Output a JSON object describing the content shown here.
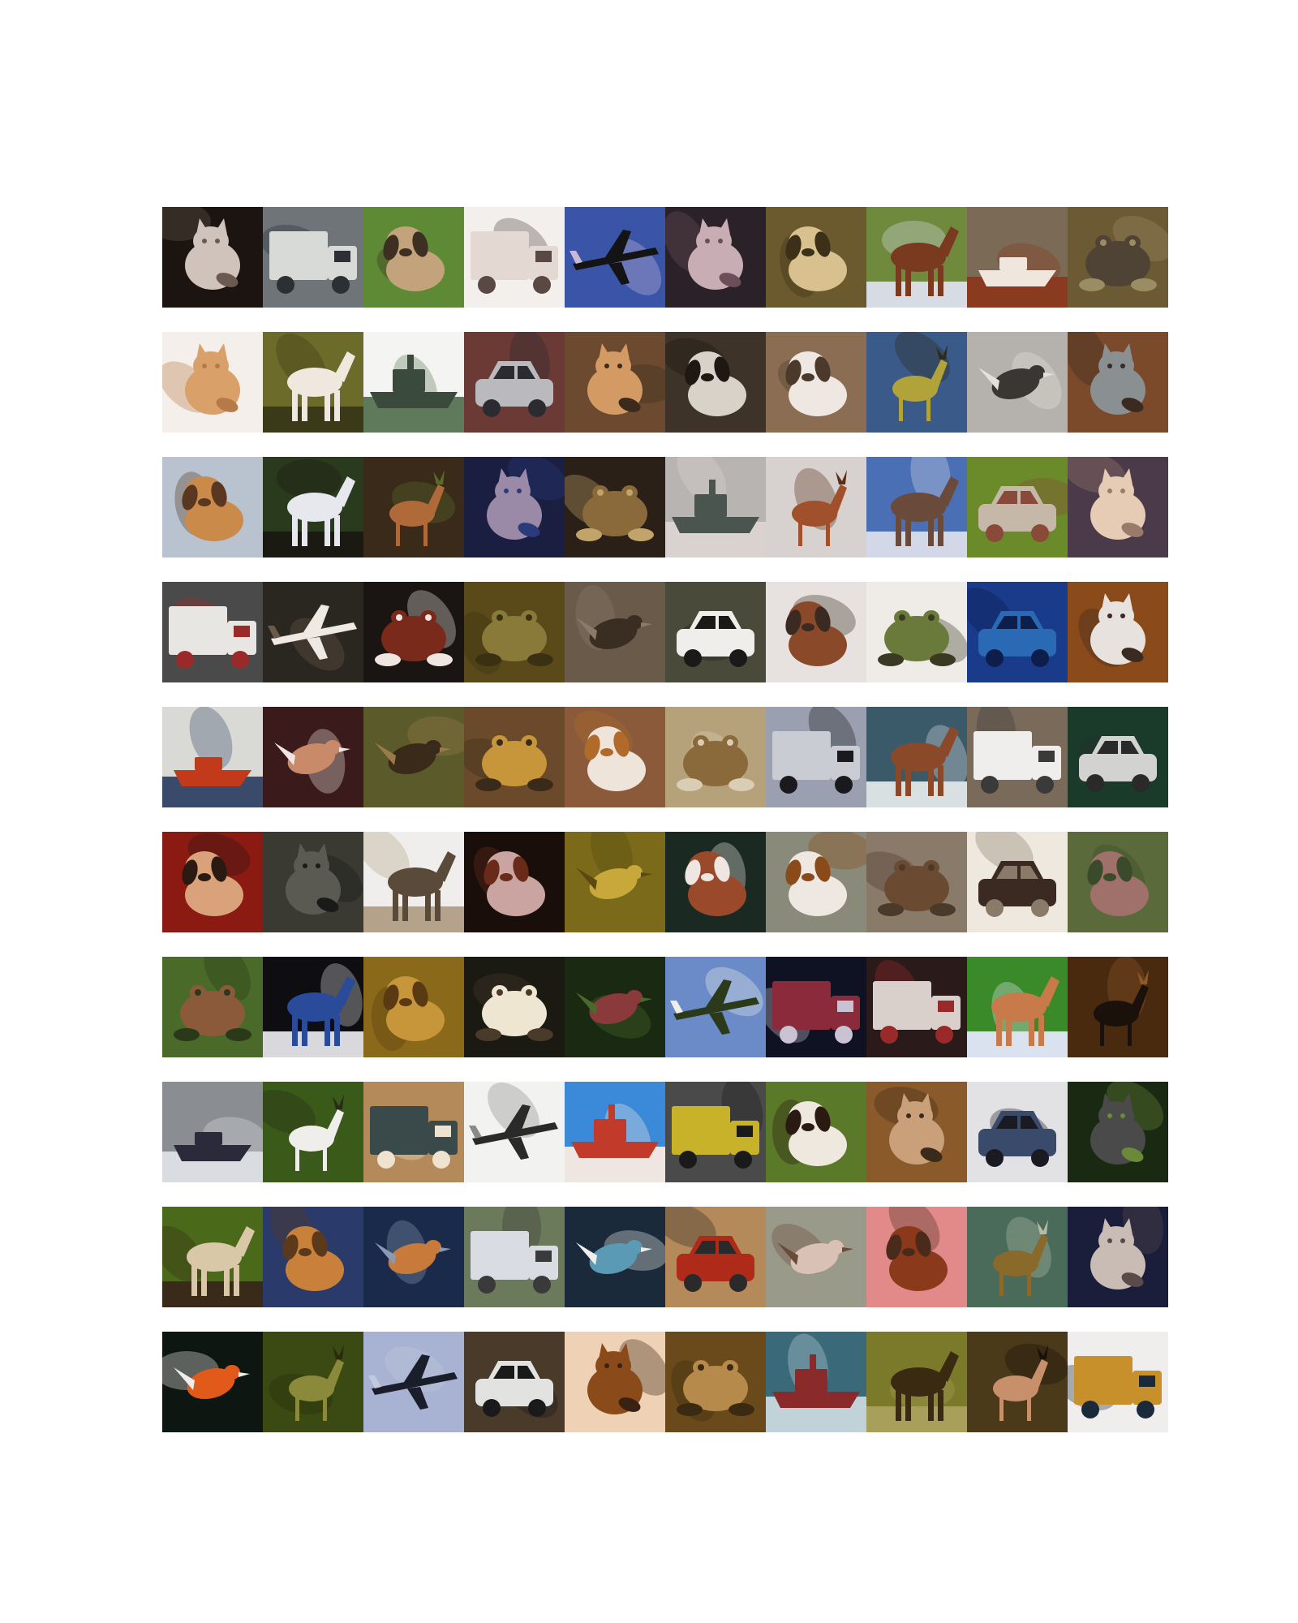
{
  "grid": {
    "rows": 10,
    "cols": 10,
    "tiles": [
      {
        "subject": "cat",
        "bg": "#1b1410",
        "fg": "#cfc3bb",
        "accent": "#6b5a50"
      },
      {
        "subject": "truck",
        "bg": "#6e7478",
        "fg": "#d7dad6",
        "accent": "#2c2f33"
      },
      {
        "subject": "dog",
        "bg": "#5f8a35",
        "fg": "#c2a37c",
        "accent": "#3d2f22"
      },
      {
        "subject": "truck",
        "bg": "#f2efed",
        "fg": "#e4d8d2",
        "accent": "#5a4844"
      },
      {
        "subject": "airplane",
        "bg": "#3a55a8",
        "fg": "#141414",
        "accent": "#c9b8d6"
      },
      {
        "subject": "cat",
        "bg": "#2a2228",
        "fg": "#c9adb5",
        "accent": "#6c4e58"
      },
      {
        "subject": "dog",
        "bg": "#6b5a2e",
        "fg": "#d8c08f",
        "accent": "#3c3018"
      },
      {
        "subject": "horse",
        "bg": "#6f8a3d",
        "fg": "#7a3a20",
        "accent": "#d7dbe4"
      },
      {
        "subject": "boat",
        "bg": "#7b6a55",
        "fg": "#efe7dd",
        "accent": "#8a3a1f"
      },
      {
        "subject": "frog",
        "bg": "#6c5a34",
        "fg": "#4e4334",
        "accent": "#9b8d63"
      },
      {
        "subject": "cat",
        "bg": "#f4efea",
        "fg": "#d9a06a",
        "accent": "#b57a48"
      },
      {
        "subject": "horse",
        "bg": "#6d6b2a",
        "fg": "#efe8de",
        "accent": "#3b3a18"
      },
      {
        "subject": "ship",
        "bg": "#f4f4f2",
        "fg": "#3a4a3c",
        "accent": "#5e7a5a"
      },
      {
        "subject": "car",
        "bg": "#6b3a35",
        "fg": "#b9b9be",
        "accent": "#2c2c30"
      },
      {
        "subject": "cat",
        "bg": "#6b4a30",
        "fg": "#d39a63",
        "accent": "#3c2a1d"
      },
      {
        "subject": "dog",
        "bg": "#3d3328",
        "fg": "#d9d2c8",
        "accent": "#1e1712"
      },
      {
        "subject": "dog",
        "bg": "#8a6d52",
        "fg": "#efe8e2",
        "accent": "#4b3a2c"
      },
      {
        "subject": "deer",
        "bg": "#3a5a8a",
        "fg": "#b2a23a",
        "accent": "#2d2b1a"
      },
      {
        "subject": "bird",
        "bg": "#b5b2ad",
        "fg": "#3a3633",
        "accent": "#e4e1dd"
      },
      {
        "subject": "cat",
        "bg": "#7a4a2a",
        "fg": "#8a8f92",
        "accent": "#3a2a22"
      },
      {
        "subject": "dog",
        "bg": "#b9c3cf",
        "fg": "#c98a4a",
        "accent": "#5a3720"
      },
      {
        "subject": "horse",
        "bg": "#2a3a1d",
        "fg": "#e7e7ee",
        "accent": "#1a1a12"
      },
      {
        "subject": "deer",
        "bg": "#3a2a1a",
        "fg": "#b06a3a",
        "accent": "#5b6a2a"
      },
      {
        "subject": "cat",
        "bg": "#1a1e40",
        "fg": "#9a8aa8",
        "accent": "#2a3a7a"
      },
      {
        "subject": "frog",
        "bg": "#2a2018",
        "fg": "#8a6a3a",
        "accent": "#c2a36a"
      },
      {
        "subject": "ship",
        "bg": "#b8b4b2",
        "fg": "#4a5550",
        "accent": "#d9d2cf"
      },
      {
        "subject": "deer",
        "bg": "#d7d2cf",
        "fg": "#a0502a",
        "accent": "#5a2e18"
      },
      {
        "subject": "horse",
        "bg": "#4a6fb5",
        "fg": "#6a4a3a",
        "accent": "#d2d8e8"
      },
      {
        "subject": "car",
        "bg": "#6b8a2a",
        "fg": "#c6b8a8",
        "accent": "#8a4a3a"
      },
      {
        "subject": "cat",
        "bg": "#4a3a4a",
        "fg": "#e7ccb5",
        "accent": "#9a7a6a"
      },
      {
        "subject": "truck",
        "bg": "#4a4a4a",
        "fg": "#e7e6e3",
        "accent": "#9a2a2a"
      },
      {
        "subject": "airplane",
        "bg": "#2a2620",
        "fg": "#efe9e4",
        "accent": "#6a5a4a"
      },
      {
        "subject": "frog",
        "bg": "#1a1412",
        "fg": "#7a2a1a",
        "accent": "#efe6e2"
      },
      {
        "subject": "frog",
        "bg": "#5a4a1a",
        "fg": "#8a7a3a",
        "accent": "#3a3012"
      },
      {
        "subject": "bird",
        "bg": "#6a5a4a",
        "fg": "#3a2e22",
        "accent": "#8a7a6a"
      },
      {
        "subject": "car",
        "bg": "#4a4a3a",
        "fg": "#efeeea",
        "accent": "#1a1a18"
      },
      {
        "subject": "dog",
        "bg": "#e7e2df",
        "fg": "#8a4a2a",
        "accent": "#3a2a22"
      },
      {
        "subject": "frog",
        "bg": "#efece8",
        "fg": "#6a7a3a",
        "accent": "#3a3a22"
      },
      {
        "subject": "car",
        "bg": "#1a3a8a",
        "fg": "#2a6ab5",
        "accent": "#0e1e4a"
      },
      {
        "subject": "cat",
        "bg": "#8a4a1a",
        "fg": "#e7e2de",
        "accent": "#3a2a22"
      },
      {
        "subject": "boat",
        "bg": "#d9dad6",
        "fg": "#c23a1a",
        "accent": "#3a4a6a"
      },
      {
        "subject": "bird",
        "bg": "#3a1a1a",
        "fg": "#c98a6a",
        "accent": "#efe6e2"
      },
      {
        "subject": "bird",
        "bg": "#5a5a2a",
        "fg": "#3a2a1a",
        "accent": "#9a7a4a"
      },
      {
        "subject": "frog",
        "bg": "#6a4a2a",
        "fg": "#c8963a",
        "accent": "#3a2a1a"
      },
      {
        "subject": "dog",
        "bg": "#8a5a3a",
        "fg": "#efe4da",
        "accent": "#b06a2a"
      },
      {
        "subject": "frog",
        "bg": "#b5a27a",
        "fg": "#8a6a3a",
        "accent": "#d9cdb5"
      },
      {
        "subject": "truck",
        "bg": "#9aa0b0",
        "fg": "#c9ccd2",
        "accent": "#1a1a1e"
      },
      {
        "subject": "horse",
        "bg": "#3a5a6a",
        "fg": "#8a4a2a",
        "accent": "#d9e0e2"
      },
      {
        "subject": "truck",
        "bg": "#7a6a5a",
        "fg": "#efeeec",
        "accent": "#3a3a3a"
      },
      {
        "subject": "car",
        "bg": "#1a3a2a",
        "fg": "#d2d2d0",
        "accent": "#2a2a2a"
      },
      {
        "subject": "dog",
        "bg": "#8a1a12",
        "fg": "#d9a27a",
        "accent": "#2a1a12"
      },
      {
        "subject": "cat",
        "bg": "#3a3a32",
        "fg": "#5a5a52",
        "accent": "#1a1a18"
      },
      {
        "subject": "horse",
        "bg": "#efeeec",
        "fg": "#5a4a3a",
        "accent": "#b5a28a"
      },
      {
        "subject": "dog",
        "bg": "#1a0e0a",
        "fg": "#c9a4a0",
        "accent": "#6a2a1a"
      },
      {
        "subject": "bird",
        "bg": "#7a6a1a",
        "fg": "#c8a83a",
        "accent": "#5a4a12"
      },
      {
        "subject": "dog",
        "bg": "#1a2a22",
        "fg": "#9a4a2a",
        "accent": "#efe6e2"
      },
      {
        "subject": "dog",
        "bg": "#8a8a7a",
        "fg": "#efe8e2",
        "accent": "#8a4a1a"
      },
      {
        "subject": "frog",
        "bg": "#8a7a6a",
        "fg": "#6a4a30",
        "accent": "#4a3a2a"
      },
      {
        "subject": "car",
        "bg": "#efe8df",
        "fg": "#3a2a22",
        "accent": "#8a7a6a"
      },
      {
        "subject": "dog",
        "bg": "#5a6a3a",
        "fg": "#a0706a",
        "accent": "#3a4a2a"
      },
      {
        "subject": "frog",
        "bg": "#4a6a2a",
        "fg": "#8a5a3a",
        "accent": "#2a3a18"
      },
      {
        "subject": "horse",
        "bg": "#0e0e12",
        "fg": "#2a4a9a",
        "accent": "#d9d9dd"
      },
      {
        "subject": "dog",
        "bg": "#8a6a1a",
        "fg": "#c8963a",
        "accent": "#5a3a12"
      },
      {
        "subject": "frog",
        "bg": "#1a1a12",
        "fg": "#efe6d2",
        "accent": "#4a3a2a"
      },
      {
        "subject": "bird",
        "bg": "#1a2a12",
        "fg": "#8a3a3a",
        "accent": "#4a6a2a"
      },
      {
        "subject": "airplane",
        "bg": "#6a8ac8",
        "fg": "#2a3a1a",
        "accent": "#efeeec"
      },
      {
        "subject": "truck",
        "bg": "#0e1222",
        "fg": "#8a2a3a",
        "accent": "#c8c2d2"
      },
      {
        "subject": "truck",
        "bg": "#2a1a1a",
        "fg": "#d9cfcb",
        "accent": "#9a2a2a"
      },
      {
        "subject": "horse",
        "bg": "#3a8a2a",
        "fg": "#c87a4a",
        "accent": "#d9e2ee"
      },
      {
        "subject": "deer",
        "bg": "#4a2a0e",
        "fg": "#1a120a",
        "accent": "#8a5a2a"
      },
      {
        "subject": "boat",
        "bg": "#8a8e92",
        "fg": "#2a2a3a",
        "accent": "#d9dde2"
      },
      {
        "subject": "deer",
        "bg": "#3a5a1a",
        "fg": "#efeeea",
        "accent": "#2a2a18"
      },
      {
        "subject": "truck",
        "bg": "#b58a5a",
        "fg": "#3a4a4a",
        "accent": "#efe2cf"
      },
      {
        "subject": "airplane",
        "bg": "#f2f2f0",
        "fg": "#2a2a2a",
        "accent": "#8a8a8a"
      },
      {
        "subject": "ship",
        "bg": "#3a8ad9",
        "fg": "#c23a2a",
        "accent": "#efe6e2"
      },
      {
        "subject": "truck",
        "bg": "#4a4a4a",
        "fg": "#c8b22a",
        "accent": "#1a1a1a"
      },
      {
        "subject": "dog",
        "bg": "#5a7a2a",
        "fg": "#efe8de",
        "accent": "#2a1a12"
      },
      {
        "subject": "cat",
        "bg": "#8a5a2a",
        "fg": "#c9a07a",
        "accent": "#3a2a1a"
      },
      {
        "subject": "car",
        "bg": "#e2e2e4",
        "fg": "#3a4a6a",
        "accent": "#1a1a22"
      },
      {
        "subject": "cat",
        "bg": "#1a2a12",
        "fg": "#4a4a4a",
        "accent": "#6a8a3a"
      },
      {
        "subject": "horse",
        "bg": "#4a6a1a",
        "fg": "#d9c8a8",
        "accent": "#3a2a1a"
      },
      {
        "subject": "dog",
        "bg": "#2a3a6a",
        "fg": "#c9803a",
        "accent": "#5a3a1a"
      },
      {
        "subject": "bird",
        "bg": "#1a2a4a",
        "fg": "#c87a3a",
        "accent": "#8a9ab5"
      },
      {
        "subject": "truck",
        "bg": "#6a7a5a",
        "fg": "#d9dce2",
        "accent": "#3a3a3a"
      },
      {
        "subject": "bird",
        "bg": "#1a2a3a",
        "fg": "#5a9ab5",
        "accent": "#efeeec"
      },
      {
        "subject": "car",
        "bg": "#b58a5a",
        "fg": "#b02a1a",
        "accent": "#2a2a2a"
      },
      {
        "subject": "bird",
        "bg": "#9a9a8a",
        "fg": "#d9c2b5",
        "accent": "#6a4a3a"
      },
      {
        "subject": "dog",
        "bg": "#e28a8a",
        "fg": "#8a3a1a",
        "accent": "#4a2a1a"
      },
      {
        "subject": "deer",
        "bg": "#4a6a5a",
        "fg": "#8a6a2a",
        "accent": "#b5bca8"
      },
      {
        "subject": "cat",
        "bg": "#1a1e3a",
        "fg": "#c9bcb5",
        "accent": "#5a4a4a"
      },
      {
        "subject": "bird",
        "bg": "#0e1612",
        "fg": "#e25a1a",
        "accent": "#efeeec"
      },
      {
        "subject": "deer",
        "bg": "#3a4a12",
        "fg": "#8a8a3a",
        "accent": "#2a2a0e"
      },
      {
        "subject": "airplane",
        "bg": "#a8b2d2",
        "fg": "#1a1e2a",
        "accent": "#c2c8de"
      },
      {
        "subject": "car",
        "bg": "#4a3a2a",
        "fg": "#e2e2e0",
        "accent": "#1a1a1a"
      },
      {
        "subject": "cat",
        "bg": "#efd2b5",
        "fg": "#8a4a1a",
        "accent": "#3a2212"
      },
      {
        "subject": "frog",
        "bg": "#6a4a1a",
        "fg": "#b58a4a",
        "accent": "#3a2a12"
      },
      {
        "subject": "ship",
        "bg": "#3a6a7a",
        "fg": "#8a2a2a",
        "accent": "#c2d2d9"
      },
      {
        "subject": "horse",
        "bg": "#7a7a2a",
        "fg": "#3a2a12",
        "accent": "#a8a05a"
      },
      {
        "subject": "deer",
        "bg": "#4a3a1a",
        "fg": "#c8906a",
        "accent": "#1a1208"
      },
      {
        "subject": "truck",
        "bg": "#efeeec",
        "fg": "#c8902a",
        "accent": "#1a2a3a"
      }
    ]
  }
}
